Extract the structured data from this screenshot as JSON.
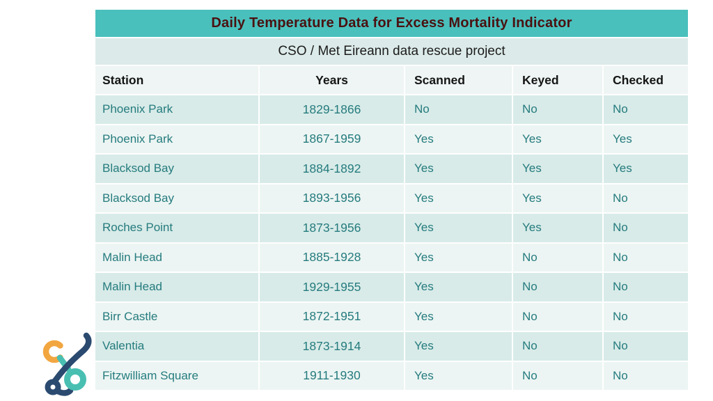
{
  "slide": {
    "title": "Daily Temperature Data for Excess Mortality Indicator",
    "subtitle": "CSO / Met Eireann data rescue project"
  },
  "table": {
    "columns": {
      "station": "Station",
      "years": "Years",
      "scanned": "Scanned",
      "keyed": "Keyed",
      "checked": "Checked"
    },
    "rows": [
      {
        "station": "Phoenix Park",
        "years": "1829-1866",
        "scanned": "No",
        "keyed": "No",
        "checked": "No"
      },
      {
        "station": "Phoenix Park",
        "years": "1867-1959",
        "scanned": "Yes",
        "keyed": "Yes",
        "checked": "Yes"
      },
      {
        "station": "Blacksod Bay",
        "years": "1884-1892",
        "scanned": "Yes",
        "keyed": "Yes",
        "checked": "Yes"
      },
      {
        "station": "Blacksod Bay",
        "years": "1893-1956",
        "scanned": "Yes",
        "keyed": "Yes",
        "checked": "No"
      },
      {
        "station": "Roches Point",
        "years": "1873-1956",
        "scanned": "Yes",
        "keyed": "Yes",
        "checked": "No"
      },
      {
        "station": "Malin Head",
        "years": "1885-1928",
        "scanned": "Yes",
        "keyed": "No",
        "checked": "No"
      },
      {
        "station": "Malin Head",
        "years": "1929-1955",
        "scanned": "Yes",
        "keyed": "No",
        "checked": "No"
      },
      {
        "station": "Birr Castle",
        "years": "1872-1951",
        "scanned": "Yes",
        "keyed": "No",
        "checked": "No"
      },
      {
        "station": "Valentia",
        "years": "1873-1914",
        "scanned": "Yes",
        "keyed": "No",
        "checked": "No"
      },
      {
        "station": "Fitzwilliam Square",
        "years": "1911-1930",
        "scanned": "Yes",
        "keyed": "No",
        "checked": "No"
      }
    ]
  },
  "colors": {
    "title_bar_bg": "#49c0bc",
    "title_text": "#4a1111",
    "subtitle_bg": "#dcebe9",
    "header_bg": "#eef5f4",
    "row_odd_bg": "#d8ebe8",
    "row_even_bg": "#ecf5f3",
    "cell_text": "#257b7e",
    "header_text": "#151515",
    "logo_orange": "#f2a640",
    "logo_teal": "#49bfb2",
    "logo_navy": "#2b4a70"
  },
  "logo": {
    "name": "cso-data-rescue-logo"
  }
}
